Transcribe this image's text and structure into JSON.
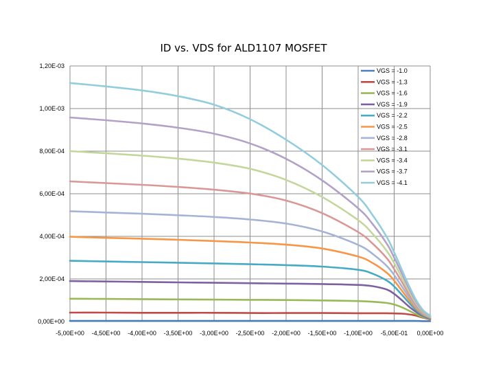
{
  "chart_data": {
    "type": "line",
    "title": "ID vs. VDS for ALD1107 MOSFET",
    "xlabel": "",
    "ylabel": "",
    "xlim": [
      -5,
      0
    ],
    "ylim": [
      0,
      0.0012
    ],
    "grid": true,
    "legend_position": "right",
    "x_ticks": [
      -5,
      -4.5,
      -4,
      -3.5,
      -3,
      -2.5,
      -2,
      -1.5,
      -1,
      -0.5,
      0
    ],
    "x_tick_labels": [
      "-5,00E+00",
      "-4,50E+00",
      "-4,00E+00",
      "-3,50E+00",
      "-3,00E+00",
      "-2,50E+00",
      "-2,00E+00",
      "-1,50E+00",
      "-1,00E+00",
      "-5,00E-01",
      "0,00E+00"
    ],
    "y_ticks": [
      0,
      0.0002,
      0.0004,
      0.0006,
      0.0008,
      0.001,
      0.0012
    ],
    "y_tick_labels": [
      "0,00E+00",
      "2,00E-04",
      "4,00E-04",
      "6,00E-04",
      "8,00E-04",
      "1,00E-03",
      "1,20E-03"
    ],
    "x": [
      -5,
      -4.5,
      -4,
      -3.5,
      -3,
      -2.5,
      -2,
      -1.5,
      -1,
      -0.8,
      -0.6,
      -0.5,
      -0.4,
      -0.3,
      -0.2,
      -0.1,
      0
    ],
    "series": [
      {
        "name": "VGS = -1.0",
        "color": "#4a7ebb",
        "values": [
          3e-06,
          3e-06,
          3e-06,
          3e-06,
          3e-06,
          3e-06,
          3e-06,
          3e-06,
          3e-06,
          3e-06,
          3e-06,
          3e-06,
          3e-06,
          3e-06,
          3e-06,
          2e-06,
          2e-06
        ]
      },
      {
        "name": "VGS = -1.3",
        "color": "#be4b48",
        "values": [
          4.2e-05,
          4.2e-05,
          4.1e-05,
          4.1e-05,
          4.1e-05,
          4e-05,
          4e-05,
          4e-05,
          3.9e-05,
          3.9e-05,
          3.9e-05,
          3.8e-05,
          3.7e-05,
          3.4e-05,
          2.8e-05,
          1.8e-05,
          1e-05
        ]
      },
      {
        "name": "VGS = -1.6",
        "color": "#98b954",
        "values": [
          0.000107,
          0.000106,
          0.000105,
          0.000104,
          0.000103,
          0.000102,
          0.000101,
          9.9e-05,
          9.6e-05,
          9.3e-05,
          8.7e-05,
          8e-05,
          6.8e-05,
          5.2e-05,
          3.5e-05,
          2e-05,
          1.2e-05
        ]
      },
      {
        "name": "VGS = -1.9",
        "color": "#7d60a0",
        "values": [
          0.00019,
          0.000188,
          0.000186,
          0.000184,
          0.000182,
          0.00018,
          0.000178,
          0.000176,
          0.000172,
          0.000166,
          0.00015,
          0.00013,
          0.000102,
          7.2e-05,
          4.6e-05,
          2.6e-05,
          1.4e-05
        ]
      },
      {
        "name": "VGS = -2.2",
        "color": "#46aac5",
        "values": [
          0.000285,
          0.000282,
          0.000279,
          0.000276,
          0.000273,
          0.000269,
          0.000265,
          0.000258,
          0.000243,
          0.000225,
          0.000192,
          0.000165,
          0.000128,
          9e-05,
          5.5e-05,
          3e-05,
          1.6e-05
        ]
      },
      {
        "name": "VGS = -2.5",
        "color": "#f79646",
        "values": [
          0.000398,
          0.000393,
          0.000389,
          0.000384,
          0.000378,
          0.000371,
          0.000361,
          0.000343,
          0.000305,
          0.000275,
          0.000228,
          0.000192,
          0.000148,
          0.000104,
          6.4e-05,
          3.4e-05,
          1.8e-05
        ]
      },
      {
        "name": "VGS = -2.8",
        "color": "#a5b3d4",
        "values": [
          0.000518,
          0.000512,
          0.000506,
          0.000499,
          0.000491,
          0.000479,
          0.00046,
          0.000423,
          0.00036,
          0.000318,
          0.00026,
          0.000218,
          0.000168,
          0.000118,
          7.2e-05,
          3.8e-05,
          2e-05
        ]
      },
      {
        "name": "VGS = -3.1",
        "color": "#d99795",
        "values": [
          0.000658,
          0.00065,
          0.000642,
          0.000632,
          0.000619,
          0.000601,
          0.000568,
          0.000509,
          0.00042,
          0.000366,
          0.000296,
          0.000246,
          0.00019,
          0.000132,
          8e-05,
          4.2e-05,
          2.2e-05
        ]
      },
      {
        "name": "VGS = -3.4",
        "color": "#c4d79b",
        "values": [
          0.0008,
          0.00079,
          0.000779,
          0.000765,
          0.000746,
          0.000717,
          0.000665,
          0.000585,
          0.000476,
          0.000412,
          0.00033,
          0.000274,
          0.00021,
          0.000146,
          8.8e-05,
          4.6e-05,
          2.4e-05
        ]
      },
      {
        "name": "VGS = -3.7",
        "color": "#b3a2c7",
        "values": [
          0.000958,
          0.000945,
          0.00093,
          0.00091,
          0.000882,
          0.000836,
          0.000764,
          0.000663,
          0.000532,
          0.000458,
          0.000364,
          0.0003,
          0.00023,
          0.00016,
          9.6e-05,
          5e-05,
          2.6e-05
        ]
      },
      {
        "name": "VGS = -4.1",
        "color": "#93cddd",
        "values": [
          0.00112,
          0.001104,
          0.001085,
          0.001058,
          0.001018,
          0.00095,
          0.000854,
          0.000735,
          0.000585,
          0.0005,
          0.000395,
          0.000325,
          0.000248,
          0.000172,
          0.000104,
          5.4e-05,
          2.8e-05
        ]
      }
    ]
  }
}
